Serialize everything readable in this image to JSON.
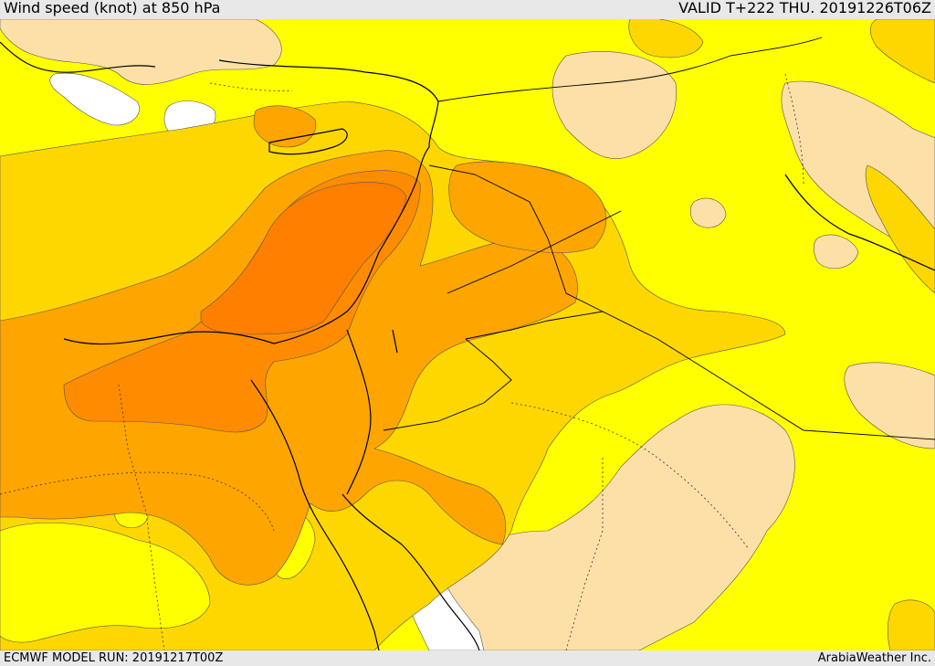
{
  "header": {
    "title": "Wind speed (knot) at 850 hPa",
    "valid": "VALID T+222 THU. 20191226T06Z"
  },
  "footer": {
    "run": "ECMWF MODEL RUN: 20191217T00Z",
    "credit": "ArabiaWeather Inc."
  },
  "map": {
    "colors": {
      "calm": "#ffffff",
      "light": "#fde0a8",
      "moderate": "#ffff00",
      "fresh": "#ffd700",
      "strong": "#ffa500",
      "very_strong": "#ff8c00",
      "max": "#ff7f00"
    }
  }
}
